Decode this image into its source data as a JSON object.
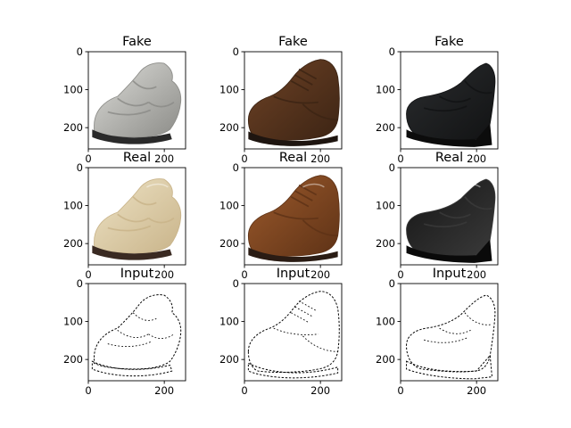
{
  "chart_data": [
    {
      "type": "image",
      "title": "Fake",
      "row": 0,
      "col": 0,
      "shoe": "sandal",
      "rendering": "fake",
      "xticks": [
        0,
        200
      ],
      "yticks": [
        0,
        100,
        200
      ],
      "xlim": [
        0,
        256
      ],
      "ylim": [
        256,
        0
      ]
    },
    {
      "type": "image",
      "title": "Fake",
      "row": 0,
      "col": 1,
      "shoe": "oxford",
      "rendering": "fake",
      "xticks": [
        0,
        200
      ],
      "yticks": [
        0,
        100,
        200
      ],
      "xlim": [
        0,
        256
      ],
      "ylim": [
        256,
        0
      ]
    },
    {
      "type": "image",
      "title": "Fake",
      "row": 0,
      "col": 2,
      "shoe": "clog",
      "rendering": "fake",
      "xticks": [
        0,
        200
      ],
      "yticks": [
        0,
        100,
        200
      ],
      "xlim": [
        0,
        256
      ],
      "ylim": [
        256,
        0
      ]
    },
    {
      "type": "image",
      "title": "Real",
      "row": 1,
      "col": 0,
      "shoe": "sandal",
      "rendering": "real",
      "xticks": [
        0,
        200
      ],
      "yticks": [
        0,
        100,
        200
      ],
      "xlim": [
        0,
        256
      ],
      "ylim": [
        256,
        0
      ]
    },
    {
      "type": "image",
      "title": "Real",
      "row": 1,
      "col": 1,
      "shoe": "oxford",
      "rendering": "real",
      "xticks": [
        0,
        200
      ],
      "yticks": [
        0,
        100,
        200
      ],
      "xlim": [
        0,
        256
      ],
      "ylim": [
        256,
        0
      ]
    },
    {
      "type": "image",
      "title": "Real",
      "row": 1,
      "col": 2,
      "shoe": "clog",
      "rendering": "real",
      "xticks": [
        0,
        200
      ],
      "yticks": [
        0,
        100,
        200
      ],
      "xlim": [
        0,
        256
      ],
      "ylim": [
        256,
        0
      ]
    },
    {
      "type": "image",
      "title": "Input",
      "row": 2,
      "col": 0,
      "shoe": "sandal",
      "rendering": "edges",
      "xticks": [
        0,
        200
      ],
      "yticks": [
        0,
        100,
        200
      ],
      "xlim": [
        0,
        256
      ],
      "ylim": [
        256,
        0
      ]
    },
    {
      "type": "image",
      "title": "Input",
      "row": 2,
      "col": 1,
      "shoe": "oxford",
      "rendering": "edges",
      "xticks": [
        0,
        200
      ],
      "yticks": [
        0,
        100,
        200
      ],
      "xlim": [
        0,
        256
      ],
      "ylim": [
        256,
        0
      ]
    },
    {
      "type": "image",
      "title": "Input",
      "row": 2,
      "col": 2,
      "shoe": "clog",
      "rendering": "edges",
      "xticks": [
        0,
        200
      ],
      "yticks": [
        0,
        100,
        200
      ],
      "xlim": [
        0,
        256
      ],
      "ylim": [
        256,
        0
      ]
    }
  ],
  "colors": {
    "sandal_fake_body": "#dcdcd8",
    "sandal_fake_shadow": "#8c8c88",
    "sandal_fake_sole": "#2a2a2a",
    "sandal_real_body": "#ede2c4",
    "sandal_real_shadow": "#c9b48a",
    "sandal_real_sole": "#3a2a22",
    "oxford_fake_body": "#6e4225",
    "oxford_fake_shadow": "#3c2414",
    "oxford_fake_sole": "#1e1510",
    "oxford_real_body": "#9c5a2c",
    "oxford_real_shadow": "#5e3216",
    "oxford_real_sole": "#2a1c14",
    "clog_fake_body": "#2a2c2e",
    "clog_fake_shadow": "#121314",
    "clog_fake_sole": "#0c0c0c",
    "clog_real_body": "#151515",
    "clog_real_shadow": "#3a3a3a",
    "clog_real_sole": "#0a0a0a",
    "edge_line": "#000000"
  }
}
